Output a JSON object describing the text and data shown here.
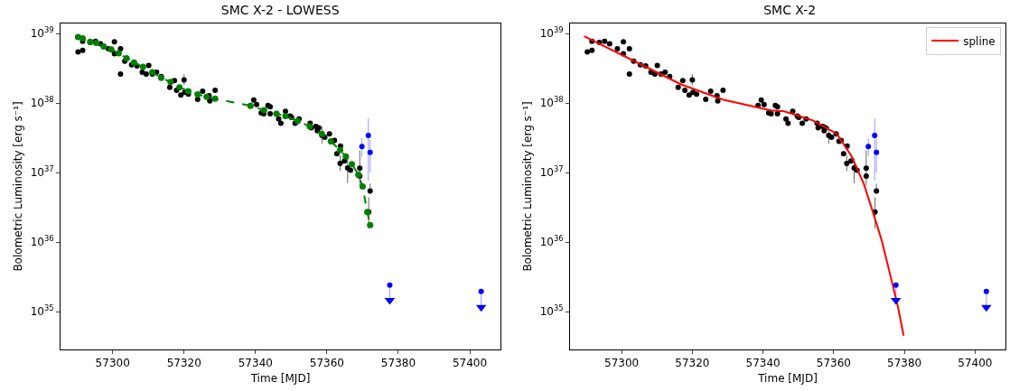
{
  "chart_data": [
    {
      "type": "scatter",
      "title": "SMC X-2 - LOWESS",
      "xlabel": "Time [MJD]",
      "ylabel": "Bolometric Luminosity [erg s⁻¹]",
      "log": "y",
      "xlim": [
        57285.4,
        57408.6
      ],
      "xticks": [
        57300,
        57320,
        57340,
        57360,
        57380,
        57400
      ],
      "ylim": [
        2.85e+34,
        1.39e+39
      ],
      "yticks": [
        {
          "value": 1e+35,
          "label": "10$^{35}$"
        },
        {
          "value": 1e+36,
          "label": "10$^{36}$"
        },
        {
          "value": 1e+37,
          "label": "10$^{37}$"
        },
        {
          "value": 1e+38,
          "label": "10$^{38}$"
        },
        {
          "value": 1e+39,
          "label": "10$^{39}$"
        }
      ],
      "grid": false,
      "legend": false,
      "series": [
        {
          "type": "scatter",
          "color": "#000000",
          "marker": "circle",
          "x": [
            57290.3,
            57291.6,
            57291.6,
            57293.7,
            57295.2,
            57296.6,
            57298.8,
            57300.5,
            57300.5,
            57302.2,
            57302.2,
            57303.4,
            57305.3,
            57306.8,
            57308.3,
            57309.4,
            57310.1,
            57311.1,
            57312.3,
            57313.6,
            57316.0,
            57317.3,
            57317.9,
            57319.1,
            57320.0,
            57320.2,
            57321.2,
            57323.8,
            57325.2,
            57327.0,
            57327.2,
            57328.7,
            57338.6,
            57339.5,
            57340.3,
            57341.6,
            57342.3,
            57343.5,
            57344.1,
            57344.1,
            57346.5,
            57347.1,
            57348.4,
            57349.7,
            57350.1,
            57351.1,
            57352.2,
            57355.3,
            57355.6,
            57356.9,
            57357.3,
            57357.7,
            57358.6,
            57359.4,
            57360.7,
            57361.5,
            57362.1,
            57362.8,
            57363.7,
            57363.8,
            57364.9,
            57365.8,
            57366.6,
            57369.2,
            57369.2,
            57371.7,
            57372.1
          ],
          "values": [
            5.4e+38,
            5.7e+38,
            7.7e+38,
            7.4e+38,
            7.7e+38,
            7.1e+38,
            6e+38,
            7.6e+38,
            5.1e+38,
            6e+38,
            2.6e+38,
            4e+38,
            3.55e+38,
            3.4e+38,
            2.76e+38,
            2.6e+38,
            3.45e+38,
            2.6e+38,
            2.76e+38,
            2.4e+38,
            1.67e+38,
            2.1e+38,
            1.52e+38,
            1.3e+38,
            2.15e+38,
            1.42e+38,
            1.34e+38,
            1.13e+38,
            1.48e+38,
            1.27e+38,
            1.07e+38,
            1.52e+38,
            9.2e+37,
            1.1e+38,
            9.5e+37,
            7.2e+37,
            7e+37,
            9.2e+37,
            8.8e+37,
            7e+37,
            5.9e+37,
            5.1e+37,
            7.6e+37,
            6.5e+37,
            6.2e+37,
            5.1e+37,
            5.9e+37,
            5.1e+37,
            4.4e+37,
            4.6e+37,
            4e+37,
            4.4e+37,
            3.4e+37,
            3.2e+37,
            3.6e+37,
            2.8e+37,
            2.9e+37,
            1.86e+37,
            1.35e+37,
            2.4e+37,
            1.46e+37,
            1.16e+37,
            1.08e+37,
            1.15e+37,
            8.9e+36,
            2.7e+36,
            5.4e+36
          ],
          "errors": [
            null,
            null,
            null,
            null,
            null,
            null,
            null,
            null,
            null,
            null,
            null,
            null,
            null,
            null,
            null,
            null,
            null,
            null,
            null,
            null,
            null,
            null,
            null,
            null,
            [
              1.8e+38,
              2.6e+38
            ],
            null,
            null,
            null,
            null,
            null,
            null,
            null,
            null,
            null,
            null,
            null,
            null,
            null,
            null,
            null,
            null,
            null,
            null,
            null,
            null,
            null,
            null,
            null,
            null,
            null,
            null,
            null,
            [
              2.6e+37,
              4.6e+37
            ],
            null,
            null,
            null,
            null,
            null,
            [
              1.05e+37,
              1.75e+37
            ],
            null,
            null,
            [
              7e+36,
              1.6e+37
            ],
            null,
            [
              6.5e+36,
              2.07e+37
            ],
            null,
            [
              1.56e+36,
              4.4e+36
            ],
            [
              4.9e+36,
              6.9e+36
            ]
          ]
        },
        {
          "type": "line",
          "color": "#008000",
          "marker": "circle",
          "line_style": "dashed",
          "x": [
            57290.3,
            57291.6,
            57293.7,
            57295.4,
            57297.5,
            57299.6,
            57301.7,
            57303.9,
            57306.0,
            57308.5,
            57311.1,
            57313.6,
            57316.2,
            57318.7,
            57321.2,
            57323.8,
            57326.3,
            57328.7,
            57338.6,
            57342.4,
            57345.9,
            57348.4,
            57351.8,
            57355.2,
            57358.6,
            57361.1,
            57363.7,
            57365.3,
            57367.0,
            57368.8,
            57370.0,
            57371.3,
            57372.1
          ],
          "values": [
            8.9e+38,
            8.5e+38,
            7.6e+38,
            7.3e+38,
            6.5e+38,
            5.9e+38,
            5.2e+38,
            4.4e+38,
            3.8e+38,
            3.3e+38,
            2.76e+38,
            2.3e+38,
            2e+38,
            1.68e+38,
            1.48e+38,
            1.33e+38,
            1.22e+38,
            1.15e+38,
            9.1e+37,
            7.9e+37,
            7e+37,
            6.5e+37,
            5.5e+37,
            4.6e+37,
            3.6e+37,
            2.8e+37,
            2.1e+37,
            1.7e+37,
            1.32e+37,
            9.3e+36,
            6.3e+36,
            2.7e+36,
            1.75e+36
          ]
        },
        {
          "type": "scatter",
          "color": "#0000ff",
          "marker": "circle",
          "x": [
            57369.8,
            57371.6,
            57372.1,
            57377.6,
            57403.2
          ],
          "values": [
            2.36e+37,
            3.4e+37,
            1.95e+37,
            2.4e+35,
            1.95e+35
          ],
          "errors": [
            [
              1.7e+37,
              3.1e+37
            ],
            [
              7.6e+36,
              6e+37
            ],
            [
              1e+37,
              3e+37
            ],
            [
              1.45e+35,
              2.4e+35
            ],
            [
              1.15e+35,
              1.95e+35
            ]
          ]
        },
        {
          "type": "scatter",
          "color": "#0000ff",
          "marker": "triangle",
          "x": [
            57377.6,
            57403.2
          ],
          "values": [
            1.45e+35,
            1.15e+35
          ]
        }
      ]
    },
    {
      "type": "scatter",
      "title": "SMC X-2",
      "xlabel": "Time [MJD]",
      "ylabel": "Bolometric Luminosity [erg s⁻¹]",
      "log": "y",
      "xlim": [
        57285.4,
        57408.6
      ],
      "xticks": [
        57300,
        57320,
        57340,
        57360,
        57380,
        57400
      ],
      "ylim": [
        2.85e+34,
        1.39e+39
      ],
      "yticks": [
        {
          "value": 1e+35,
          "label": "10$^{35}$"
        },
        {
          "value": 1e+36,
          "label": "10$^{36}$"
        },
        {
          "value": 1e+37,
          "label": "10$^{37}$"
        },
        {
          "value": 1e+38,
          "label": "10$^{38}$"
        },
        {
          "value": 1e+39,
          "label": "10$^{39}$"
        }
      ],
      "grid": false,
      "legend": "top right",
      "series": [
        {
          "type": "scatter",
          "color": "#000000",
          "marker": "circle",
          "x": [
            57290.3,
            57291.6,
            57291.6,
            57293.7,
            57295.2,
            57296.6,
            57298.8,
            57300.5,
            57300.5,
            57302.2,
            57302.2,
            57303.4,
            57305.3,
            57306.8,
            57308.3,
            57309.4,
            57310.1,
            57311.1,
            57312.3,
            57313.6,
            57316.0,
            57317.3,
            57317.9,
            57319.1,
            57320.0,
            57320.2,
            57321.2,
            57323.8,
            57325.2,
            57327.0,
            57327.2,
            57328.7,
            57338.6,
            57339.5,
            57340.3,
            57341.6,
            57342.3,
            57343.5,
            57344.1,
            57344.1,
            57346.5,
            57347.1,
            57348.4,
            57349.7,
            57350.1,
            57351.1,
            57352.2,
            57355.3,
            57355.6,
            57356.9,
            57357.3,
            57357.7,
            57358.6,
            57359.4,
            57360.7,
            57361.5,
            57362.1,
            57362.8,
            57363.7,
            57363.8,
            57364.9,
            57365.8,
            57366.6,
            57369.2,
            57369.2,
            57371.7,
            57372.1
          ],
          "values": [
            5.4e+38,
            5.7e+38,
            7.7e+38,
            7.4e+38,
            7.7e+38,
            7.1e+38,
            6e+38,
            7.6e+38,
            5.1e+38,
            6e+38,
            2.6e+38,
            4e+38,
            3.55e+38,
            3.4e+38,
            2.76e+38,
            2.6e+38,
            3.45e+38,
            2.6e+38,
            2.76e+38,
            2.4e+38,
            1.67e+38,
            2.1e+38,
            1.52e+38,
            1.3e+38,
            2.15e+38,
            1.42e+38,
            1.34e+38,
            1.13e+38,
            1.48e+38,
            1.27e+38,
            1.07e+38,
            1.52e+38,
            9.2e+37,
            1.1e+38,
            9.5e+37,
            7.2e+37,
            7e+37,
            9.2e+37,
            8.8e+37,
            7e+37,
            5.9e+37,
            5.1e+37,
            7.6e+37,
            6.5e+37,
            6.2e+37,
            5.1e+37,
            5.9e+37,
            5.1e+37,
            4.4e+37,
            4.6e+37,
            4e+37,
            4.4e+37,
            3.4e+37,
            3.2e+37,
            3.6e+37,
            2.8e+37,
            2.9e+37,
            1.86e+37,
            1.35e+37,
            2.4e+37,
            1.46e+37,
            1.16e+37,
            1.08e+37,
            1.15e+37,
            8.9e+36,
            2.7e+36,
            5.4e+36
          ],
          "errors": [
            null,
            null,
            null,
            null,
            null,
            null,
            null,
            null,
            null,
            null,
            null,
            null,
            null,
            null,
            null,
            null,
            null,
            null,
            null,
            null,
            null,
            null,
            null,
            null,
            [
              1.8e+38,
              2.6e+38
            ],
            null,
            null,
            null,
            null,
            null,
            null,
            null,
            null,
            null,
            null,
            null,
            null,
            null,
            null,
            null,
            null,
            null,
            null,
            null,
            null,
            null,
            null,
            null,
            null,
            null,
            null,
            null,
            [
              2.6e+37,
              4.6e+37
            ],
            null,
            null,
            null,
            null,
            null,
            [
              1.05e+37,
              1.75e+37
            ],
            null,
            null,
            [
              7e+36,
              1.6e+37
            ],
            null,
            [
              6.5e+36,
              2.07e+37
            ],
            null,
            [
              1.56e+36,
              4.4e+36
            ],
            [
              4.9e+36,
              6.9e+36
            ]
          ]
        },
        {
          "type": "line",
          "name": "spline",
          "color": "#ff0000",
          "marker": "none",
          "line_style": "solid",
          "x": [
            57289.4,
            57304.0,
            57316.7,
            57328.6,
            57342.2,
            57346.0,
            57354.1,
            57360.9,
            57365.1,
            57368.5,
            57371.0,
            57373.6,
            57376.1,
            57378.2,
            57379.8
          ],
          "values": [
            9.1e+38,
            3.9e+38,
            1.86e+38,
            1.12e+38,
            7.8e+37,
            7.6e+37,
            5.6e+37,
            3.6e+37,
            1.7e+37,
            6.9e+36,
            2.8e+36,
            1.05e+36,
            3.2e+35,
            1.16e+35,
            4.5e+34
          ]
        },
        {
          "type": "scatter",
          "color": "#0000ff",
          "marker": "circle",
          "x": [
            57369.8,
            57371.6,
            57372.1,
            57377.6,
            57403.2
          ],
          "values": [
            2.36e+37,
            3.4e+37,
            1.95e+37,
            2.4e+35,
            1.95e+35
          ],
          "errors": [
            [
              1.7e+37,
              3.1e+37
            ],
            [
              7.6e+36,
              6e+37
            ],
            [
              1e+37,
              3e+37
            ],
            [
              1.45e+35,
              2.4e+35
            ],
            [
              1.15e+35,
              1.95e+35
            ]
          ]
        },
        {
          "type": "scatter",
          "color": "#0000ff",
          "marker": "triangle",
          "x": [
            57377.6,
            57403.2
          ],
          "values": [
            1.45e+35,
            1.15e+35
          ]
        }
      ]
    }
  ]
}
